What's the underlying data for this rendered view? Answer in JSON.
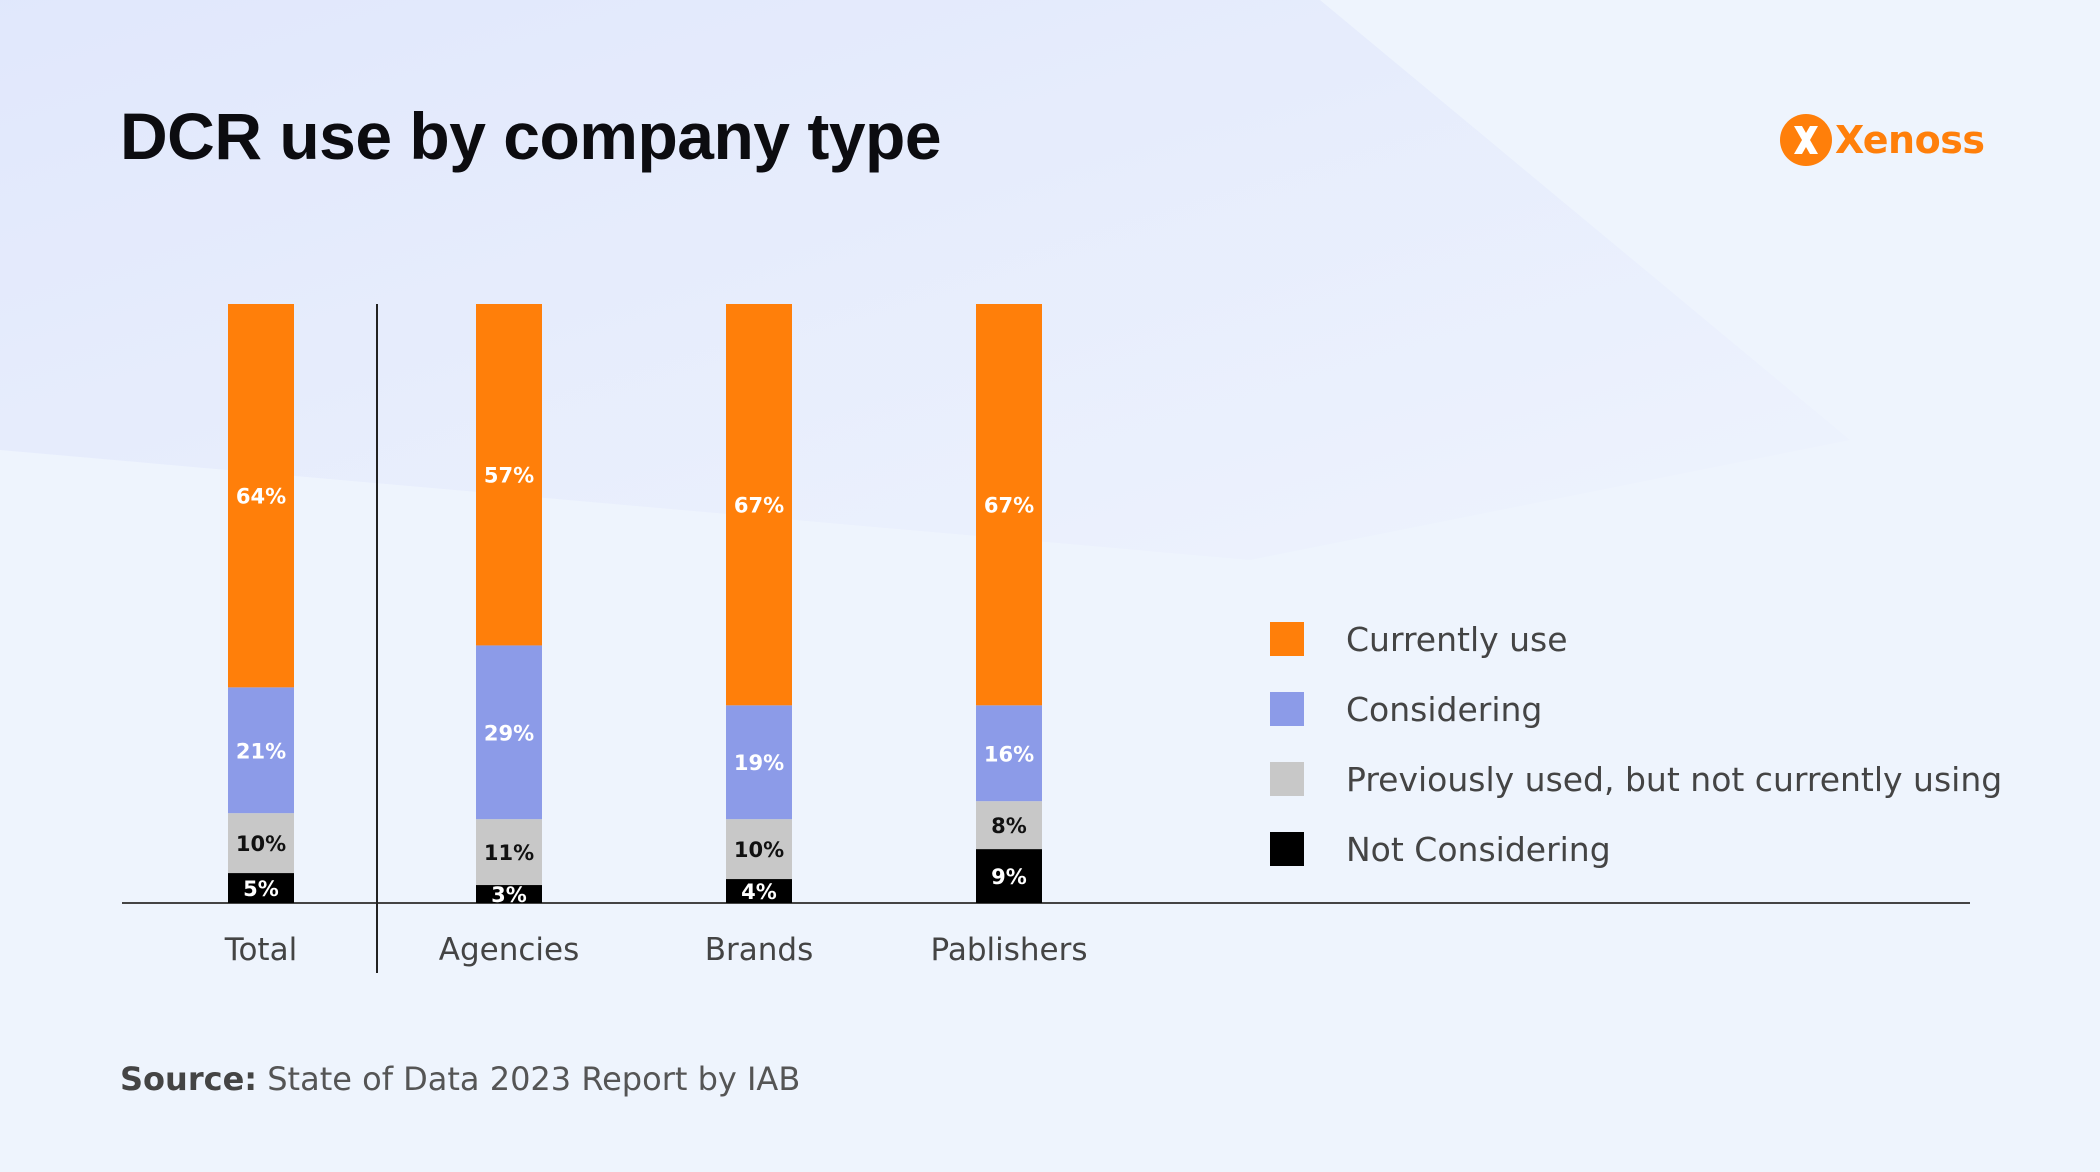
{
  "title": "DCR use by company type",
  "logo": {
    "text": "Xenoss",
    "icon": "xenoss-logo-icon"
  },
  "source": {
    "label": "Source:",
    "text": "State of Data 2023 Report by IAB"
  },
  "colors": {
    "currently_use": "#ff7f0a",
    "considering": "#8c9be8",
    "previously_used": "#c8c8c8",
    "not_considering": "#000000",
    "accent": "#ff7f0a"
  },
  "chart_data": {
    "type": "bar",
    "stacked": true,
    "categories": [
      "Total",
      "Agencies",
      "Brands",
      "Pablishers"
    ],
    "series": [
      {
        "name": "Currently use",
        "values": [
          64,
          57,
          67,
          67
        ]
      },
      {
        "name": "Considering",
        "values": [
          21,
          29,
          19,
          16
        ]
      },
      {
        "name": "Previously used, but not currently using",
        "values": [
          10,
          11,
          10,
          8
        ]
      },
      {
        "name": "Not Considering",
        "values": [
          5,
          3,
          4,
          9
        ]
      }
    ],
    "data_labels": [
      [
        "64%",
        "57%",
        "67%",
        "67%"
      ],
      [
        "21%",
        "29%",
        "19%",
        "16%"
      ],
      [
        "10%",
        "11%",
        "10%",
        "8%"
      ],
      [
        "5%",
        "3%",
        "4%",
        "9%"
      ]
    ],
    "ylim": [
      0,
      100
    ],
    "grid": false,
    "legend_position": "right",
    "xlabel": "",
    "ylabel": ""
  }
}
